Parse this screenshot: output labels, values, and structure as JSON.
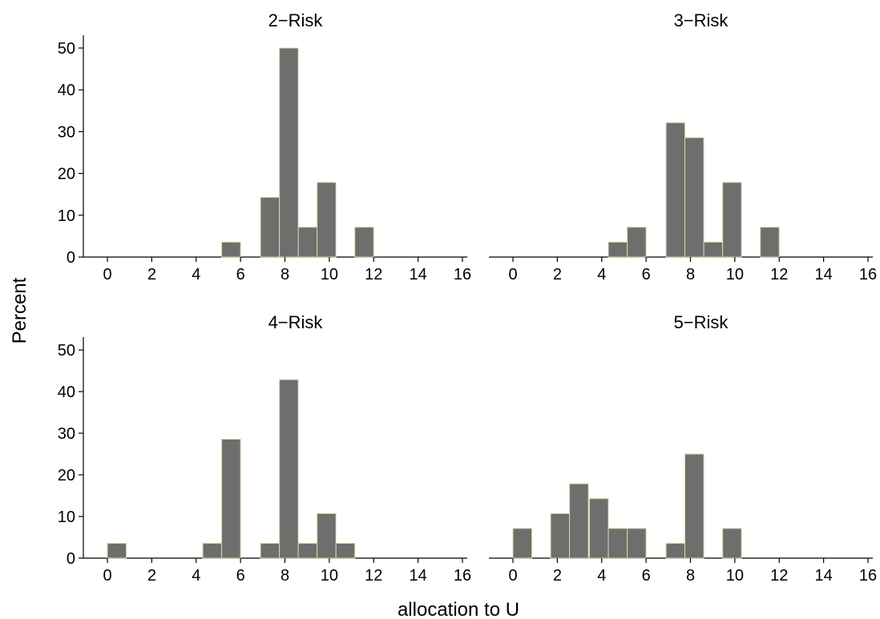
{
  "chart_data": {
    "type": "bar",
    "ylabel": "Percent",
    "xlabel": "allocation to U",
    "xticks": [
      0,
      2,
      4,
      6,
      8,
      10,
      12,
      14,
      16
    ],
    "yticks": [
      0,
      10,
      20,
      30,
      40,
      50
    ],
    "xlim": [
      -1,
      16.5
    ],
    "ylim": [
      0,
      53
    ],
    "bin_width": 0.85,
    "bar_color": "#6e6e6e",
    "bar_edge_color": "#d8d8a8",
    "panels": [
      {
        "title": "2−Risk",
        "bins": [
          {
            "x": 5.15,
            "value": 3.57
          },
          {
            "x": 6.9,
            "value": 14.29
          },
          {
            "x": 7.75,
            "value": 50.0
          },
          {
            "x": 8.6,
            "value": 7.14
          },
          {
            "x": 9.45,
            "value": 17.86
          },
          {
            "x": 11.15,
            "value": 7.14
          }
        ]
      },
      {
        "title": "3−Risk",
        "bins": [
          {
            "x": 4.3,
            "value": 3.57
          },
          {
            "x": 5.15,
            "value": 7.14
          },
          {
            "x": 6.9,
            "value": 32.14
          },
          {
            "x": 7.75,
            "value": 28.57
          },
          {
            "x": 8.6,
            "value": 3.57
          },
          {
            "x": 9.45,
            "value": 17.86
          },
          {
            "x": 11.15,
            "value": 7.14
          }
        ]
      },
      {
        "title": "4−Risk",
        "bins": [
          {
            "x": 0,
            "value": 3.57
          },
          {
            "x": 4.3,
            "value": 3.57
          },
          {
            "x": 5.15,
            "value": 28.57
          },
          {
            "x": 6.9,
            "value": 3.57
          },
          {
            "x": 7.75,
            "value": 42.86
          },
          {
            "x": 8.6,
            "value": 3.57
          },
          {
            "x": 9.45,
            "value": 10.71
          },
          {
            "x": 10.3,
            "value": 3.57
          }
        ]
      },
      {
        "title": "5−Risk",
        "bins": [
          {
            "x": 0,
            "value": 7.14
          },
          {
            "x": 1.7,
            "value": 10.71
          },
          {
            "x": 2.55,
            "value": 17.86
          },
          {
            "x": 3.45,
            "value": 14.29
          },
          {
            "x": 4.3,
            "value": 7.14
          },
          {
            "x": 5.15,
            "value": 7.14
          },
          {
            "x": 6.9,
            "value": 3.57
          },
          {
            "x": 7.75,
            "value": 25.0
          },
          {
            "x": 9.45,
            "value": 7.14
          }
        ]
      }
    ]
  }
}
